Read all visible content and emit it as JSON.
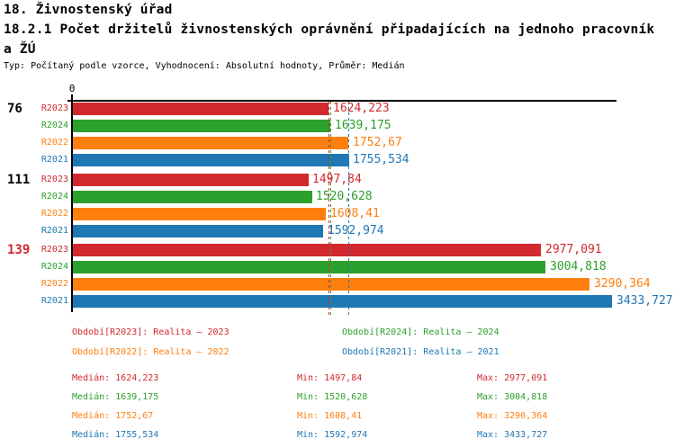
{
  "title": {
    "line1": "18. Živnostenský úřad",
    "line2": "18.2.1 Počet držitelů živnostenských oprávnění připadajících na jednoho pracovník",
    "line3": "a ŽÚ",
    "subtitle": "Typ: Počítaný podle vzorce, Vyhodnocení: Absolutní hodnoty, Průměr: Medián"
  },
  "chart_data": {
    "type": "bar",
    "orientation": "horizontal",
    "value_axis": {
      "origin_label": "0",
      "min": 0,
      "max": 3460
    },
    "average_type": "Medián",
    "groups": [
      {
        "label": "76",
        "color": "#000000"
      },
      {
        "label": "111",
        "color": "#000000"
      },
      {
        "label": "139",
        "color": "#d2292d"
      }
    ],
    "series": [
      {
        "name": "R2023",
        "color": "#d2292d",
        "values": [
          1624.223,
          1497.84,
          2977.091
        ],
        "value_labels": [
          "1624,223",
          "1497,84",
          "2977,091"
        ],
        "median": 1624.223
      },
      {
        "name": "R2024",
        "color": "#2ca02c",
        "values": [
          1639.175,
          1520.628,
          3004.818
        ],
        "value_labels": [
          "1639,175",
          "1520,628",
          "3004,818"
        ],
        "median": 1639.175
      },
      {
        "name": "R2022",
        "color": "#ff7f0e",
        "values": [
          1752.67,
          1608.41,
          3290.364
        ],
        "value_labels": [
          "1752,67",
          "1608,41",
          "3290,364"
        ],
        "median": 1752.67
      },
      {
        "name": "R2021",
        "color": "#1f77b4",
        "values": [
          1755.534,
          1592.974,
          3433.727
        ],
        "value_labels": [
          "1755,534",
          "1592,974",
          "3433,727"
        ],
        "median": 1755.534
      }
    ]
  },
  "legend": {
    "items": [
      {
        "text": "Období[R2023]: Realita – 2023",
        "color": "#d2292d"
      },
      {
        "text": "Období[R2024]: Realita – 2024",
        "color": "#2ca02c"
      },
      {
        "text": "Období[R2022]: Realita – 2022",
        "color": "#ff7f0e"
      },
      {
        "text": "Období[R2021]: Realita – 2021",
        "color": "#1f77b4"
      }
    ]
  },
  "stats": {
    "rows": [
      {
        "median": "Medián: 1624,223",
        "min": "Min: 1497,84",
        "max": "Max: 2977,091",
        "color": "#d2292d"
      },
      {
        "median": "Medián: 1639,175",
        "min": "Min: 1520,628",
        "max": "Max: 3004,818",
        "color": "#2ca02c"
      },
      {
        "median": "Medián: 1752,67",
        "min": "Min: 1608,41",
        "max": "Max: 3290,364",
        "color": "#ff7f0e"
      },
      {
        "median": "Medián: 1755,534",
        "min": "Min: 1592,974",
        "max": "Max: 3433,727",
        "color": "#1f77b4"
      }
    ]
  }
}
